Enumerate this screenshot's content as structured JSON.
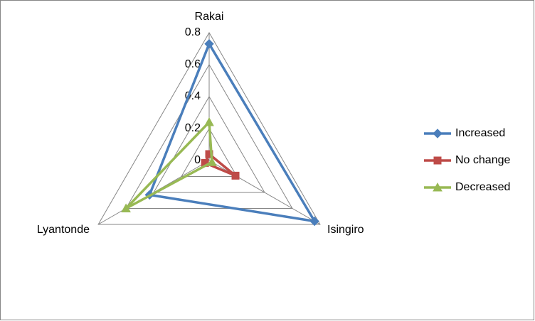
{
  "chart_data": {
    "type": "radar",
    "categories": [
      "Rakai",
      "Isingiro",
      "Lyantonde"
    ],
    "series": [
      {
        "name": "Increased",
        "color": "#4a7ebb",
        "marker": "diamond",
        "values": [
          0.73,
          0.76,
          0.43
        ]
      },
      {
        "name": "No change",
        "color": "#be4b48",
        "marker": "square",
        "values": [
          0.04,
          0.19,
          0.03
        ]
      },
      {
        "name": "Decreased",
        "color": "#98b954",
        "marker": "triangle",
        "values": [
          0.24,
          0.02,
          0.6
        ]
      }
    ],
    "ylim": [
      0,
      0.8
    ],
    "yticks": [
      0,
      0.2,
      0.4,
      0.6,
      0.8
    ],
    "grid": true,
    "legend": "right"
  }
}
